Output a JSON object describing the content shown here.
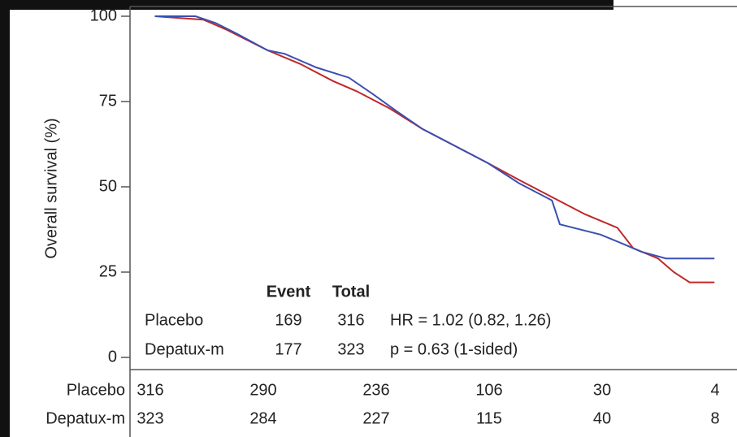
{
  "chart_data": {
    "type": "line",
    "ylabel": "Overall survival (%)",
    "xlim": [
      -0.18,
      5.2
    ],
    "ylim": [
      0,
      100
    ],
    "yticks": [
      0,
      25,
      50,
      75,
      100
    ],
    "series": [
      {
        "name": "Placebo",
        "color": "#c0282a",
        "x": [
          0.04,
          0.47,
          0.68,
          1.04,
          1.33,
          1.62,
          1.83,
          2.12,
          2.41,
          2.7,
          2.99,
          3.27,
          3.56,
          3.85,
          4.14,
          4.28,
          4.5,
          4.64,
          4.78,
          5.0
        ],
        "values": [
          100,
          99,
          96,
          90,
          86,
          81,
          78,
          73,
          67,
          62,
          57,
          52,
          47,
          42,
          38,
          32,
          29,
          25,
          22,
          22
        ]
      },
      {
        "name": "Depatux-m",
        "color": "#3a4fb0",
        "x": [
          0.04,
          0.4,
          0.58,
          0.76,
          1.04,
          1.19,
          1.47,
          1.76,
          1.98,
          2.19,
          2.41,
          2.7,
          2.99,
          3.27,
          3.56,
          3.63,
          3.99,
          4.21,
          4.35,
          4.57,
          5.0
        ],
        "values": [
          100,
          100,
          98,
          95,
          90,
          89,
          85,
          82,
          77,
          72,
          67,
          62,
          57,
          51,
          46,
          39,
          36,
          33,
          31,
          29,
          29
        ]
      }
    ],
    "annotation": {
      "headers": [
        "Event",
        "Total"
      ],
      "rows": [
        {
          "values": [
            169,
            316
          ],
          "stat": "HR = 1.02 (0.82, 1.26)"
        },
        {
          "values": [
            177,
            323
          ],
          "stat": "p = 0.63 (1-sided)"
        }
      ]
    },
    "risk_table": [
      {
        "label": "Placebo",
        "values": [
          316,
          290,
          236,
          106,
          30,
          4
        ]
      },
      {
        "label": "Depatux-m",
        "values": [
          323,
          284,
          227,
          115,
          40,
          8
        ]
      }
    ]
  }
}
